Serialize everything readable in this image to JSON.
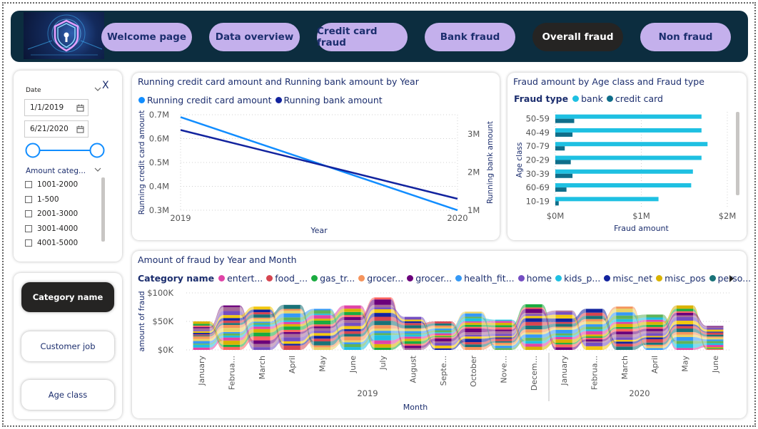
{
  "nav": {
    "buttons": [
      {
        "label": "Welcome page"
      },
      {
        "label": "Data overview"
      },
      {
        "label": "Credit card fraud"
      },
      {
        "label": "Bank fraud"
      },
      {
        "label": "Overall fraud"
      },
      {
        "label": "Non fraud"
      }
    ],
    "active": "Overall fraud"
  },
  "filters": {
    "date_label": "Date",
    "clear_label": "X",
    "start_date": "1/1/2019",
    "end_date": "6/21/2020",
    "amount_label": "Amount categ...",
    "amount_options": [
      "1001-2000",
      "1-500",
      "2001-3000",
      "3001-4000",
      "4001-5000"
    ]
  },
  "side_buttons": [
    {
      "label": "Category name"
    },
    {
      "label": "Customer job"
    },
    {
      "label": "Age class"
    }
  ],
  "colors": {
    "header_bg": "#0c2d3f",
    "nav_button": "#c4b0ec",
    "nav_active": "#252423",
    "title_text": "#1c2e6e",
    "line_credit": "#118dff",
    "line_bank": "#12239e",
    "bar_bank": "#1ec0e2",
    "bar_credit": "#0f6e8a"
  },
  "chart_running": {
    "title": "Running credit card amount and Running bank amount by Year",
    "chart_data": {
      "type": "line",
      "x": [
        "2019",
        "2020"
      ],
      "xlabel": "Year",
      "ylabel_left": "Running credit card amount",
      "ylabel_right": "Running bank amount",
      "yticks_left": [
        "0.7M",
        "0.6M",
        "0.5M",
        "0.4M",
        "0.3M"
      ],
      "yticks_right": [
        "3M",
        "2M",
        "1M"
      ],
      "ylim_left": [
        0.3,
        0.7
      ],
      "ylim_right": [
        1,
        3.5
      ],
      "series": [
        {
          "name": "Running credit card amount",
          "axis": "left",
          "values": [
            0.69,
            0.3
          ],
          "color": "#118dff"
        },
        {
          "name": "Running bank amount",
          "axis": "right",
          "values": [
            3.1,
            1.3
          ],
          "color": "#12239e"
        }
      ]
    }
  },
  "chart_age": {
    "title": "Fraud amount by Age class and Fraud type",
    "legend_title": "Fraud type",
    "chart_data": {
      "type": "bar",
      "orientation": "horizontal",
      "categories": [
        "50-59",
        "40-49",
        "70-79",
        "20-29",
        "30-39",
        "60-69",
        "10-19"
      ],
      "xlabel": "Fraud amount",
      "ylabel": "Age class",
      "xticks": [
        "$0M",
        "$1M",
        "$2M"
      ],
      "xlim": [
        0,
        2
      ],
      "series": [
        {
          "name": "bank",
          "values": [
            1.7,
            1.7,
            1.77,
            1.7,
            1.6,
            1.58,
            1.2
          ],
          "color": "#1ec0e2"
        },
        {
          "name": "credit card",
          "values": [
            0.22,
            0.2,
            0.11,
            0.18,
            0.2,
            0.13,
            0.04
          ],
          "color": "#0f6e8a"
        }
      ]
    }
  },
  "chart_ribbon": {
    "title": "Amount of fraud by Year and Month",
    "legend_title": "Category name",
    "chart_data": {
      "type": "area",
      "subtype": "ribbon",
      "xlabel": "Month",
      "ylabel": "amount of fraud",
      "yticks": [
        "$100K",
        "$50K",
        "$0K"
      ],
      "ylim": [
        0,
        100
      ],
      "years": [
        {
          "label": "2019",
          "months": 12
        },
        {
          "label": "2020",
          "months": 6
        }
      ],
      "x": [
        "January",
        "Februa...",
        "March",
        "April",
        "May",
        "June",
        "July",
        "August",
        "Septe...",
        "October",
        "Nove...",
        "Decem...",
        "January",
        "Februa...",
        "March",
        "April",
        "May",
        "June"
      ],
      "totals": [
        50,
        78,
        76,
        79,
        72,
        78,
        92,
        58,
        50,
        67,
        53,
        80,
        69,
        72,
        76,
        62,
        78,
        42
      ],
      "legend": [
        {
          "name": "entert...",
          "color": "#e044a7"
        },
        {
          "name": "food_...",
          "color": "#d64550"
        },
        {
          "name": "gas_tr...",
          "color": "#1aab40"
        },
        {
          "name": "grocer...",
          "color": "#f5945c"
        },
        {
          "name": "grocer...",
          "color": "#6b007b"
        },
        {
          "name": "health_fit...",
          "color": "#3599f6"
        },
        {
          "name": "home",
          "color": "#744ec2"
        },
        {
          "name": "kids_p...",
          "color": "#1ec0e2"
        },
        {
          "name": "misc_net",
          "color": "#12239e"
        },
        {
          "name": "misc_pos",
          "color": "#d9b300"
        },
        {
          "name": "perso...",
          "color": "#197278"
        }
      ],
      "extra_colors": [
        "#fd625e",
        "#e8d166",
        "#a66999",
        "#5fb359",
        "#f2c80f"
      ]
    }
  }
}
